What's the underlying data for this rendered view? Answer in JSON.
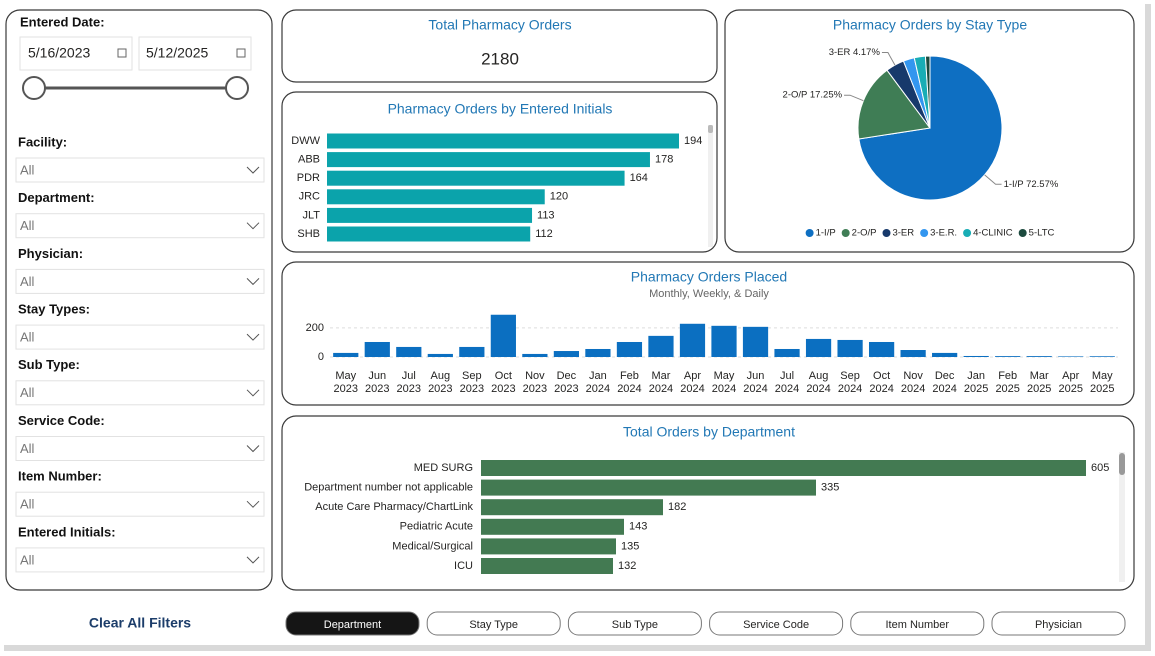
{
  "filters": {
    "date_label": "Entered Date:",
    "start_date": "5/16/2023",
    "end_date": "5/12/2025",
    "dropdowns": [
      {
        "label": "Facility:",
        "value": "All"
      },
      {
        "label": "Department:",
        "value": "All"
      },
      {
        "label": "Physician:",
        "value": "All"
      },
      {
        "label": "Stay Types:",
        "value": "All"
      },
      {
        "label": "Sub Type:",
        "value": "All"
      },
      {
        "label": "Service Code:",
        "value": "All"
      },
      {
        "label": "Item Number:",
        "value": "All"
      },
      {
        "label": "Entered Initials:",
        "value": "All"
      }
    ]
  },
  "clear_filters": "Clear All Filters",
  "kpi": {
    "title": "Total Pharmacy Orders",
    "value": 2180
  },
  "tabs": [
    "Department",
    "Stay Type",
    "Sub Type",
    "Service Code",
    "Item Number",
    "Physician"
  ],
  "active_tab": 0,
  "chart_data": [
    {
      "type": "hbar",
      "title": "Pharmacy Orders by Entered Initials",
      "categories": [
        "DWW",
        "ABB",
        "PDR",
        "JRC",
        "JLT",
        "SHB"
      ],
      "values": [
        194,
        178,
        164,
        120,
        113,
        112
      ],
      "color": "#0ba3ab"
    },
    {
      "type": "pie",
      "title": "Pharmacy Orders by Stay Type",
      "categories": [
        "1-I/P",
        "2-O/P",
        "3-ER",
        "3-E.R.",
        "4-CLINIC",
        "5-LTC"
      ],
      "values": [
        72.57,
        17.25,
        4.17,
        2.5,
        2.5,
        1.01
      ],
      "value_labels": [
        "1-I/P 72.57%",
        "2-O/P 17.25%",
        "3-ER 4.17%",
        null,
        null,
        null
      ],
      "colors": [
        "#0e6fc2",
        "#3f7d55",
        "#17396b",
        "#3396ef",
        "#19adb5",
        "#1c4a3e"
      ],
      "legend": "bottom"
    },
    {
      "type": "bar",
      "title": "Pharmacy Orders Placed",
      "subtitle": "Monthly, Weekly, & Daily",
      "categories": [
        "May 2023",
        "Jun 2023",
        "Jul 2023",
        "Aug 2023",
        "Sep 2023",
        "Oct 2023",
        "Nov 2023",
        "Dec 2023",
        "Jan 2024",
        "Feb 2024",
        "Mar 2024",
        "Apr 2024",
        "May 2024",
        "Jun 2024",
        "Jul 2024",
        "Aug 2024",
        "Sep 2024",
        "Oct 2024",
        "Nov 2024",
        "Dec 2024",
        "Jan 2025",
        "Feb 2025",
        "Mar 2025",
        "Apr 2025",
        "May 2025"
      ],
      "values": [
        28,
        103,
        69,
        21,
        69,
        290,
        21,
        41,
        55,
        103,
        145,
        228,
        214,
        207,
        55,
        124,
        117,
        103,
        48,
        28,
        7,
        6,
        6,
        4,
        5
      ],
      "color": "#0b6fc1",
      "ylim": [
        0,
        350
      ],
      "yticks": [
        0,
        200
      ],
      "grid": true
    },
    {
      "type": "hbar",
      "title": "Total Orders by Department",
      "categories": [
        "MED SURG",
        "Department number not applicable",
        "Acute Care Pharmacy/ChartLink",
        "Pediatric Acute",
        "Medical/Surgical",
        "ICU"
      ],
      "values": [
        605,
        335,
        182,
        143,
        135,
        132
      ],
      "color": "#437a52"
    }
  ]
}
